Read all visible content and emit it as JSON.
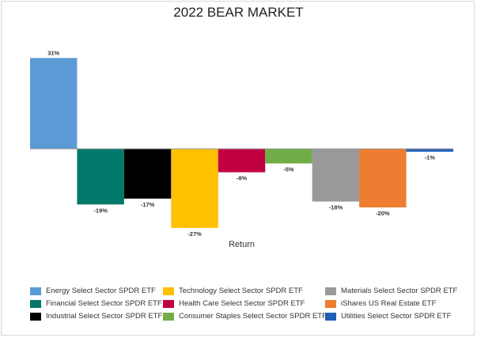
{
  "chart_data": {
    "type": "bar",
    "title": "2022 BEAR MARKET",
    "xlabel": "Return",
    "ylabel": "",
    "ylim": [
      -30,
      34
    ],
    "grid": false,
    "legend_position": "bottom",
    "categories": [
      "Energy Select Sector SPDR ETF",
      "Financial Select Sector SPDR ETF",
      "Industrial Select Sector SPDR ETF",
      "Technology Select Sector SPDR ETF",
      "Health Care Select Sector SPDR ETF",
      "Consumer Staples Select Sector SPDR ETF",
      "Materials Select Sector SPDR ETF",
      "iShares US Real Estate ETF",
      "Utilities Select Sector SPDR ETF"
    ],
    "values": [
      31,
      -19,
      -17,
      -27,
      -8,
      -5,
      -18,
      -20,
      -1
    ],
    "data_labels": [
      "31%",
      "-19%",
      "-17%",
      "-27%",
      "-8%",
      "-5%",
      "-18%",
      "-20%",
      "-1%"
    ],
    "colors": [
      "#5b9bd5",
      "#00796b",
      "#000000",
      "#ffc000",
      "#c00040",
      "#70ad47",
      "#999999",
      "#ed7d31",
      "#1f5fb5"
    ],
    "legend": [
      {
        "label": "Energy Select Sector SPDR ETF",
        "color": "#5b9bd5"
      },
      {
        "label": "Technology Select Sector SPDR ETF",
        "color": "#ffc000"
      },
      {
        "label": "Materials Select Sector SPDR ETF",
        "color": "#999999"
      },
      {
        "label": "Financial Select Sector SPDR ETF",
        "color": "#00796b"
      },
      {
        "label": "Health Care Select Sector SPDR ETF",
        "color": "#c00040"
      },
      {
        "label": "iShares US Real Estate ETF",
        "color": "#ed7d31"
      },
      {
        "label": "Industrial Select Sector SPDR ETF",
        "color": "#000000"
      },
      {
        "label": "Consumer Staples Select Sector SPDR ETF",
        "color": "#70ad47"
      },
      {
        "label": "Utilities Select Sector SPDR ETF",
        "color": "#1f5fb5"
      }
    ]
  }
}
